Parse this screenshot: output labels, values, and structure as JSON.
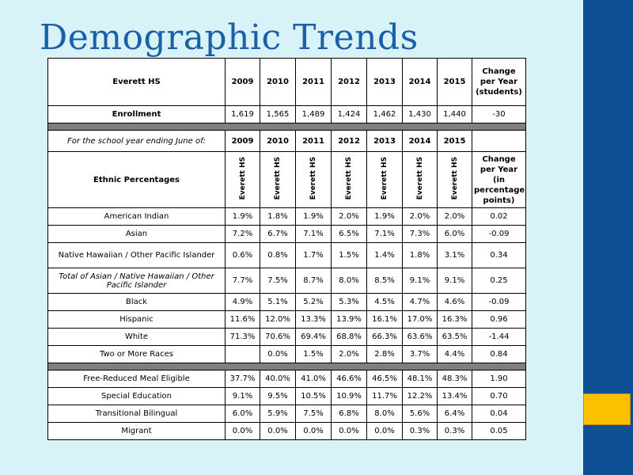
{
  "title": "Demographic Trends",
  "table": {
    "school": "Everett HS",
    "years": [
      "2009",
      "2010",
      "2011",
      "2012",
      "2013",
      "2014",
      "2015"
    ],
    "change_header_students": "Change per Year (students)",
    "enrollment": {
      "label": "Enrollment",
      "values": [
        "1,619",
        "1,565",
        "1,489",
        "1,424",
        "1,462",
        "1,430",
        "1,440"
      ],
      "change": "-30"
    },
    "school_year_label": "For the school year ending June of:",
    "ethnic_label": "Ethnic Percentages",
    "column_school_label": "Everett HS",
    "change_header_points": "Change per Year (in percentage points)",
    "ethnic_rows": [
      {
        "label": "American Indian",
        "values": [
          "1.9%",
          "1.8%",
          "1.9%",
          "2.0%",
          "1.9%",
          "2.0%",
          "2.0%"
        ],
        "change": "0.02"
      },
      {
        "label": "Asian",
        "values": [
          "7.2%",
          "6.7%",
          "7.1%",
          "6.5%",
          "7.1%",
          "7.3%",
          "6.0%"
        ],
        "change": "-0.09"
      },
      {
        "label": "Native Hawaiian / Other Pacific Islander",
        "values": [
          "0.6%",
          "0.8%",
          "1.7%",
          "1.5%",
          "1.4%",
          "1.8%",
          "3.1%"
        ],
        "change": "0.34"
      },
      {
        "label": "Total of Asian / Native Hawaiian / Other Pacific Islander",
        "values": [
          "7.7%",
          "7.5%",
          "8.7%",
          "8.0%",
          "8.5%",
          "9.1%",
          "9.1%"
        ],
        "change": "0.25"
      },
      {
        "label": "Black",
        "values": [
          "4.9%",
          "5.1%",
          "5.2%",
          "5.3%",
          "4.5%",
          "4.7%",
          "4.6%"
        ],
        "change": "-0.09"
      },
      {
        "label": "Hispanic",
        "values": [
          "11.6%",
          "12.0%",
          "13.3%",
          "13.9%",
          "16.1%",
          "17.0%",
          "16.3%"
        ],
        "change": "0.96"
      },
      {
        "label": "White",
        "values": [
          "71.3%",
          "70.6%",
          "69.4%",
          "68.8%",
          "66.3%",
          "63.6%",
          "63.5%"
        ],
        "change": "-1.44"
      },
      {
        "label": "Two or More Races",
        "values": [
          "",
          "0.0%",
          "1.5%",
          "2.0%",
          "2.8%",
          "3.7%",
          "4.4%"
        ],
        "change": "0.84"
      }
    ],
    "program_rows": [
      {
        "label": "Free-Reduced Meal Eligible",
        "values": [
          "37.7%",
          "40.0%",
          "41.0%",
          "46.6%",
          "46.5%",
          "48.1%",
          "48.3%"
        ],
        "change": "1.90"
      },
      {
        "label": "Special Education",
        "values": [
          "9.1%",
          "9.5%",
          "10.5%",
          "10.9%",
          "11.7%",
          "12.2%",
          "13.4%"
        ],
        "change": "0.70"
      },
      {
        "label": "Transitional Bilingual",
        "values": [
          "6.0%",
          "5.9%",
          "7.5%",
          "6.8%",
          "8.0%",
          "5.6%",
          "6.4%"
        ],
        "change": "0.04"
      },
      {
        "label": "Migrant",
        "values": [
          "0.0%",
          "0.0%",
          "0.0%",
          "0.0%",
          "0.0%",
          "0.3%",
          "0.3%"
        ],
        "change": "0.05"
      }
    ]
  },
  "colors": {
    "background": "#d8f3f8",
    "sidebar": "#0e4f96",
    "accent": "#fcc000",
    "title": "#1a5fa8",
    "separator": "#7f7f7f"
  }
}
